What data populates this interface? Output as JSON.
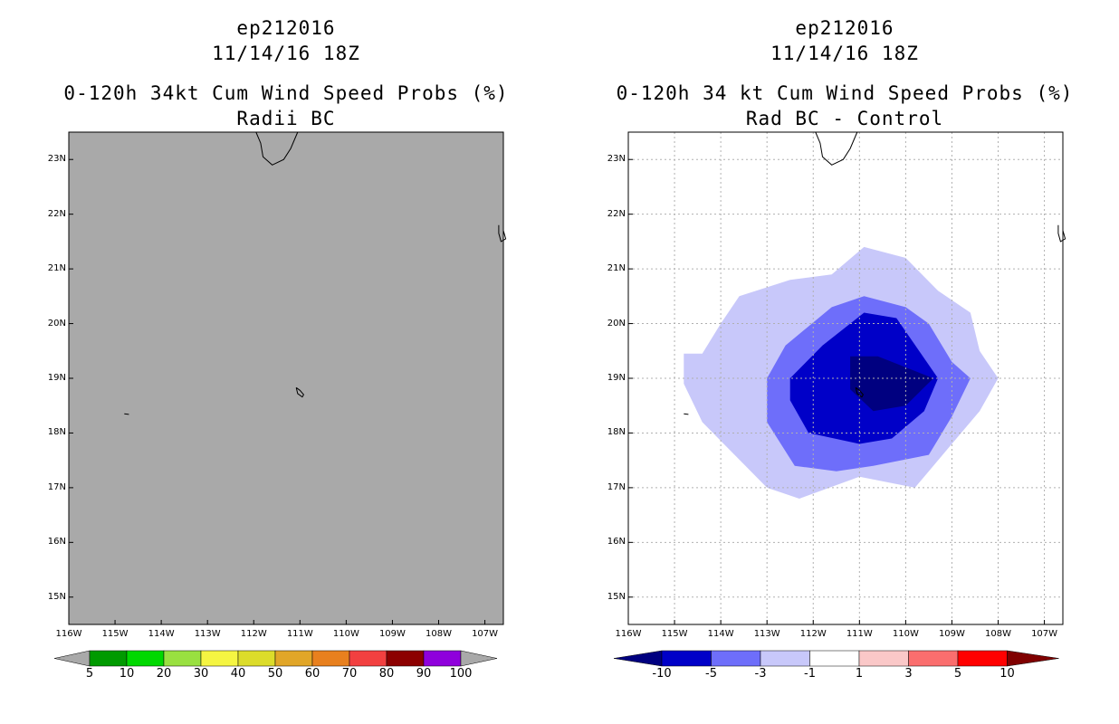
{
  "left_panel": {
    "storm_id": "ep212016",
    "date_time": "11/14/16 18Z",
    "product": "0-120h 34kt Cum Wind Speed Probs (%)",
    "experiment": "Radii BC",
    "colorbar_labels": [
      "5",
      "10",
      "20",
      "30",
      "40",
      "50",
      "60",
      "70",
      "80",
      "90",
      "100"
    ],
    "colorbar_colors": [
      "#009a00",
      "#00d800",
      "#99e040",
      "#f5f542",
      "#dcdc2a",
      "#e1a628",
      "#e8801e",
      "#f24040",
      "#8c0000",
      "#8f00dc"
    ],
    "map_fill_color": "#a9a9a9"
  },
  "right_panel": {
    "storm_id": "ep212016",
    "date_time": "11/14/16 18Z",
    "product": "0-120h 34 kt Cum Wind Speed Probs (%)",
    "experiment": "Rad BC - Control",
    "colorbar_labels": [
      "-10",
      "-5",
      "-3",
      "-1",
      "1",
      "3",
      "5",
      "10"
    ],
    "colorbar_colors": [
      "#0000c8",
      "#6e6efa",
      "#c8c8fa",
      "#ffffff",
      "#fac8c8",
      "#fa6e6e",
      "#ff0000"
    ],
    "colorbar_end_colors": [
      "#000080",
      "#800000"
    ]
  },
  "lat_labels": [
    "23N",
    "22N",
    "21N",
    "20N",
    "19N",
    "18N",
    "17N",
    "16N",
    "15N"
  ],
  "lon_labels": [
    "116W",
    "115W",
    "114W",
    "113W",
    "112W",
    "111W",
    "110W",
    "109W",
    "108W",
    "107W"
  ],
  "chart_data": [
    {
      "type": "map",
      "title": "0-120h 34kt Cum Wind Speed Probs (%) — Radii BC",
      "lon_range": [
        -116,
        -106.6
      ],
      "lat_range": [
        14.5,
        23.5
      ],
      "field": "all values below 5% (entire map shaded gray)"
    },
    {
      "type": "map",
      "title": "0-120h 34 kt Cum Wind Speed Probs (%) — Rad BC - Control",
      "lon_range": [
        -116,
        -106.6
      ],
      "lat_range": [
        14.5,
        23.5
      ],
      "contour_levels": [
        -10,
        -5,
        -3,
        -1,
        1,
        3,
        5,
        10
      ],
      "field_minimum": "below -10 near 18.9N 110.4W",
      "contours": [
        {
          "level": "-1 to -3",
          "polygon": [
            [
              -114.8,
              19.45
            ],
            [
              -114.4,
              19.45
            ],
            [
              -114.0,
              20.0
            ],
            [
              -113.6,
              20.5
            ],
            [
              -112.5,
              20.8
            ],
            [
              -111.6,
              20.9
            ],
            [
              -110.9,
              21.4
            ],
            [
              -110.0,
              21.2
            ],
            [
              -109.3,
              20.6
            ],
            [
              -108.6,
              20.2
            ],
            [
              -108.4,
              19.5
            ],
            [
              -108.0,
              19.0
            ],
            [
              -108.4,
              18.4
            ],
            [
              -109.0,
              17.8
            ],
            [
              -109.8,
              17.0
            ],
            [
              -111.0,
              17.2
            ],
            [
              -112.3,
              16.8
            ],
            [
              -113.0,
              17.0
            ],
            [
              -113.7,
              17.6
            ],
            [
              -114.4,
              18.2
            ],
            [
              -114.8,
              18.9
            ]
          ]
        },
        {
          "level": "-3 to -5",
          "polygon": [
            [
              -113.0,
              19.0
            ],
            [
              -112.6,
              19.6
            ],
            [
              -111.6,
              20.3
            ],
            [
              -110.9,
              20.5
            ],
            [
              -110.0,
              20.3
            ],
            [
              -109.5,
              20.0
            ],
            [
              -109.0,
              19.3
            ],
            [
              -108.6,
              19.0
            ],
            [
              -109.0,
              18.3
            ],
            [
              -109.5,
              17.6
            ],
            [
              -110.7,
              17.4
            ],
            [
              -111.5,
              17.3
            ],
            [
              -112.4,
              17.4
            ],
            [
              -113.0,
              18.2
            ]
          ]
        },
        {
          "level": "-5 to -10",
          "polygon": [
            [
              -112.5,
              19.0
            ],
            [
              -111.8,
              19.6
            ],
            [
              -110.9,
              20.2
            ],
            [
              -110.2,
              20.1
            ],
            [
              -109.3,
              19.0
            ],
            [
              -109.6,
              18.4
            ],
            [
              -110.3,
              17.9
            ],
            [
              -111.0,
              17.8
            ],
            [
              -112.1,
              18.0
            ],
            [
              -112.5,
              18.6
            ]
          ]
        },
        {
          "level": "< -10",
          "polygon": [
            [
              -111.2,
              19.4
            ],
            [
              -110.6,
              19.4
            ],
            [
              -110.0,
              19.2
            ],
            [
              -109.4,
              19.0
            ],
            [
              -110.0,
              18.5
            ],
            [
              -110.7,
              18.4
            ],
            [
              -111.2,
              18.8
            ]
          ]
        }
      ]
    }
  ]
}
